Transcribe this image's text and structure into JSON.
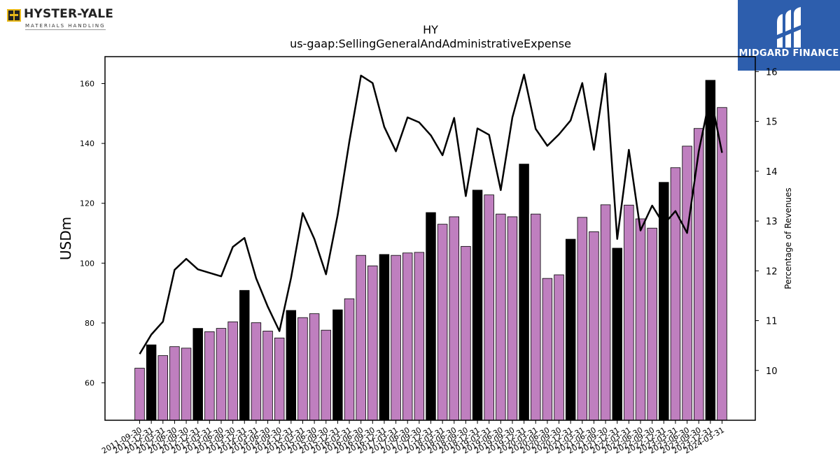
{
  "branding": {
    "left_logo_name": "HYSTER-YALE",
    "left_logo_sub": "MATERIALS HANDLING",
    "right_logo_text": "MIDGARD FINANCE",
    "right_logo_bg": "#2d5ead"
  },
  "chart_data": {
    "type": "bar",
    "title": "HY",
    "subtitle": "us-gaap:SellingGeneralAndAdministrativeExpense",
    "ylabel": "USDm",
    "y2label": "Percentage of Revenues",
    "ylim": [
      47.5,
      169
    ],
    "y2lim": [
      9.0,
      16.3
    ],
    "yticks": [
      60,
      80,
      100,
      120,
      140,
      160
    ],
    "y2ticks": [
      10,
      11,
      12,
      13,
      14,
      15,
      16
    ],
    "grid": false,
    "colors": {
      "quarter": "#bf7fbf",
      "year_end": "#000000",
      "line": "#000000"
    },
    "categories": [
      "2011-09-30",
      "2011-12-31",
      "2012-03-31",
      "2012-06-30",
      "2012-09-30",
      "2012-12-31",
      "2013-03-31",
      "2013-06-30",
      "2013-09-30",
      "2013-12-31",
      "2014-03-31",
      "2014-06-30",
      "2014-09-30",
      "2014-12-31",
      "2015-03-31",
      "2015-06-30",
      "2015-09-30",
      "2015-12-31",
      "2016-03-31",
      "2016-06-30",
      "2016-09-30",
      "2016-12-31",
      "2017-03-31",
      "2017-06-30",
      "2017-09-30",
      "2017-12-31",
      "2018-03-31",
      "2018-06-30",
      "2018-09-30",
      "2018-12-31",
      "2019-03-31",
      "2019-06-30",
      "2019-09-30",
      "2019-12-31",
      "2020-03-31",
      "2020-06-30",
      "2020-09-30",
      "2020-12-31",
      "2021-03-31",
      "2021-06-30",
      "2021-09-30",
      "2021-12-31",
      "2022-03-31",
      "2022-06-30",
      "2022-09-30",
      "2022-12-31",
      "2023-03-31",
      "2023-06-30",
      "2023-09-30",
      "2023-12-31",
      "2024-03-31"
    ],
    "values": [
      64.9,
      72.7,
      69.1,
      72.1,
      71.6,
      78.2,
      77.1,
      78.2,
      80.4,
      90.9,
      80.1,
      77.3,
      75.0,
      84.2,
      81.8,
      83.1,
      77.6,
      84.4,
      88.1,
      102.6,
      99.1,
      102.9,
      102.6,
      103.4,
      103.6,
      116.9,
      113.0,
      115.5,
      105.6,
      124.4,
      122.8,
      116.4,
      115.5,
      133.1,
      116.4,
      94.9,
      96.1,
      108.0,
      115.3,
      110.5,
      119.5,
      105.0,
      119.4,
      114.8,
      111.7,
      127.0,
      131.9,
      139.1,
      145.0,
      161.1,
      152.0
    ],
    "year_end": [
      false,
      true,
      false,
      false,
      false,
      true,
      false,
      false,
      false,
      true,
      false,
      false,
      false,
      true,
      false,
      false,
      false,
      true,
      false,
      false,
      false,
      true,
      false,
      false,
      false,
      true,
      false,
      false,
      false,
      true,
      false,
      false,
      false,
      true,
      false,
      false,
      false,
      true,
      false,
      false,
      false,
      true,
      false,
      false,
      false,
      true,
      false,
      false,
      false,
      true,
      false
    ],
    "pct_of_revenues": [
      10.33,
      10.72,
      10.98,
      12.02,
      12.24,
      12.03,
      11.96,
      11.89,
      12.48,
      12.66,
      11.85,
      11.28,
      10.79,
      11.86,
      13.16,
      12.64,
      11.93,
      13.12,
      14.59,
      15.92,
      15.77,
      14.89,
      14.4,
      15.08,
      14.98,
      14.72,
      14.32,
      15.07,
      13.5,
      14.86,
      14.73,
      13.62,
      15.08,
      15.94,
      14.85,
      14.51,
      14.74,
      15.02,
      15.77,
      14.43,
      15.96,
      12.64,
      14.43,
      12.81,
      13.31,
      12.93,
      13.2,
      12.76,
      14.4,
      15.53,
      14.37
    ]
  }
}
